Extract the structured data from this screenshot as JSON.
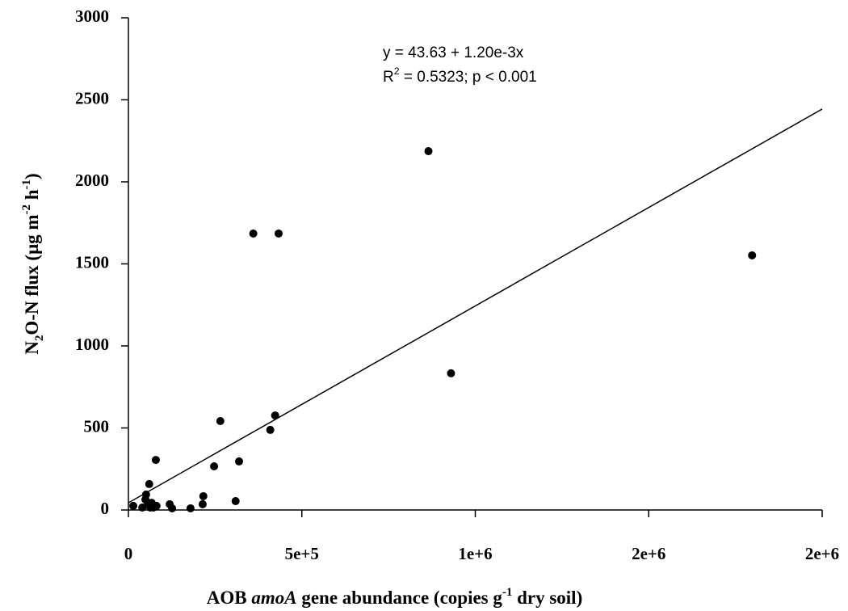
{
  "chart_data": {
    "type": "scatter",
    "x_label": [
      {
        "text": "AOB "
      },
      {
        "text": "amoA",
        "style": "italic"
      },
      {
        "text": " gene abundance (copies g"
      },
      {
        "text": "-1",
        "style": "sup"
      },
      {
        "text": " dry soil)"
      }
    ],
    "y_label": [
      {
        "text": "N"
      },
      {
        "text": "2",
        "style": "sub"
      },
      {
        "text": "O-N flux (μg m"
      },
      {
        "text": "-2",
        "style": "sup"
      },
      {
        "text": " h"
      },
      {
        "text": "-1",
        "style": "sup"
      },
      {
        "text": ")"
      }
    ],
    "annotations": [
      [
        {
          "text": "y = 43.63 + 1.20e-3x"
        }
      ],
      [
        {
          "text": "R"
        },
        {
          "text": "2",
          "style": "sup"
        },
        {
          "text": " = 0.5323; p < 0.001"
        }
      ]
    ],
    "fit": {
      "intercept": 43.63,
      "slope": 0.0012
    },
    "color": "#000000",
    "x": [
      14000,
      40000,
      49000,
      51000,
      56000,
      60000,
      63000,
      67000,
      72000,
      79000,
      81000,
      119000,
      126000,
      179000,
      214000,
      216000,
      247000,
      265000,
      309000,
      319000,
      360000,
      409000,
      423000,
      433000,
      865000,
      930000,
      1798000
    ],
    "values": [
      25,
      15,
      64,
      94,
      44,
      158,
      15,
      44,
      15,
      305,
      25,
      35,
      10,
      10,
      35,
      84,
      266,
      542,
      54,
      296,
      1685,
      488,
      576,
      1685,
      2187,
      833,
      1552
    ],
    "xlim": [
      0,
      2000000
    ],
    "ylim": [
      0,
      3000
    ],
    "xticks": [
      0,
      {
        "value": 500000,
        "label": "5e+5"
      },
      {
        "value": 1000000,
        "label": "1e+6"
      },
      {
        "value": 1500000,
        "label": "2e+6"
      },
      {
        "value": 2000000,
        "label": "2e+6"
      }
    ],
    "yticks": [
      0,
      500,
      1000,
      1500,
      2000,
      2500,
      3000
    ]
  }
}
